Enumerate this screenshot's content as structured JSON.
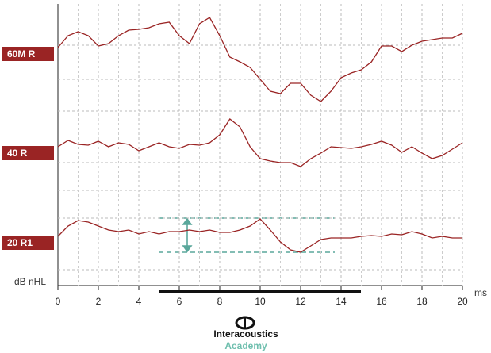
{
  "chart_data": {
    "type": "line",
    "x_label": "ms",
    "y_label": "dB nHL",
    "x": [
      0,
      0.5,
      1,
      1.5,
      2,
      2.5,
      3,
      3.5,
      4,
      4.5,
      5,
      5.5,
      6,
      6.5,
      7,
      7.5,
      8,
      8.5,
      9,
      9.5,
      10,
      10.5,
      11,
      11.5,
      12,
      12.5,
      13,
      13.5,
      14,
      14.5,
      15,
      15.5,
      16,
      16.5,
      17,
      17.5,
      18,
      18.5,
      19,
      19.5,
      20
    ],
    "series": [
      {
        "name": "60M R",
        "color": "#9a2424",
        "values": [
          300,
          315,
          320,
          315,
          302,
          305,
          315,
          322,
          323,
          325,
          330,
          332,
          315,
          305,
          330,
          338,
          315,
          288,
          282,
          275,
          260,
          245,
          242,
          255,
          255,
          240,
          232,
          245,
          262,
          268,
          272,
          282,
          302,
          302,
          295,
          303,
          308,
          310,
          312,
          312,
          318
        ]
      },
      {
        "name": "40 R",
        "color": "#9a2424",
        "values": [
          175,
          183,
          178,
          177,
          182,
          175,
          180,
          178,
          170,
          175,
          180,
          175,
          173,
          178,
          177,
          180,
          190,
          210,
          200,
          175,
          160,
          157,
          155,
          155,
          150,
          160,
          167,
          175,
          174,
          173,
          175,
          178,
          182,
          177,
          168,
          175,
          167,
          160,
          164,
          172,
          180
        ]
      },
      {
        "name": "20 R1",
        "color": "#9a2424",
        "values": [
          62,
          75,
          82,
          80,
          75,
          70,
          68,
          70,
          65,
          68,
          65,
          68,
          68,
          70,
          68,
          70,
          67,
          67,
          70,
          75,
          84,
          70,
          55,
          45,
          42,
          50,
          58,
          60,
          60,
          60,
          62,
          63,
          62,
          65,
          64,
          68,
          65,
          60,
          62,
          60,
          60
        ]
      }
    ],
    "xlim": [
      0,
      20
    ],
    "xticks": [
      0,
      2,
      4,
      6,
      8,
      10,
      12,
      14,
      16,
      18,
      20
    ],
    "ylim": [
      0,
      355
    ],
    "grid": true
  },
  "branding": {
    "name": "Interacoustics",
    "sub": "Academy"
  }
}
